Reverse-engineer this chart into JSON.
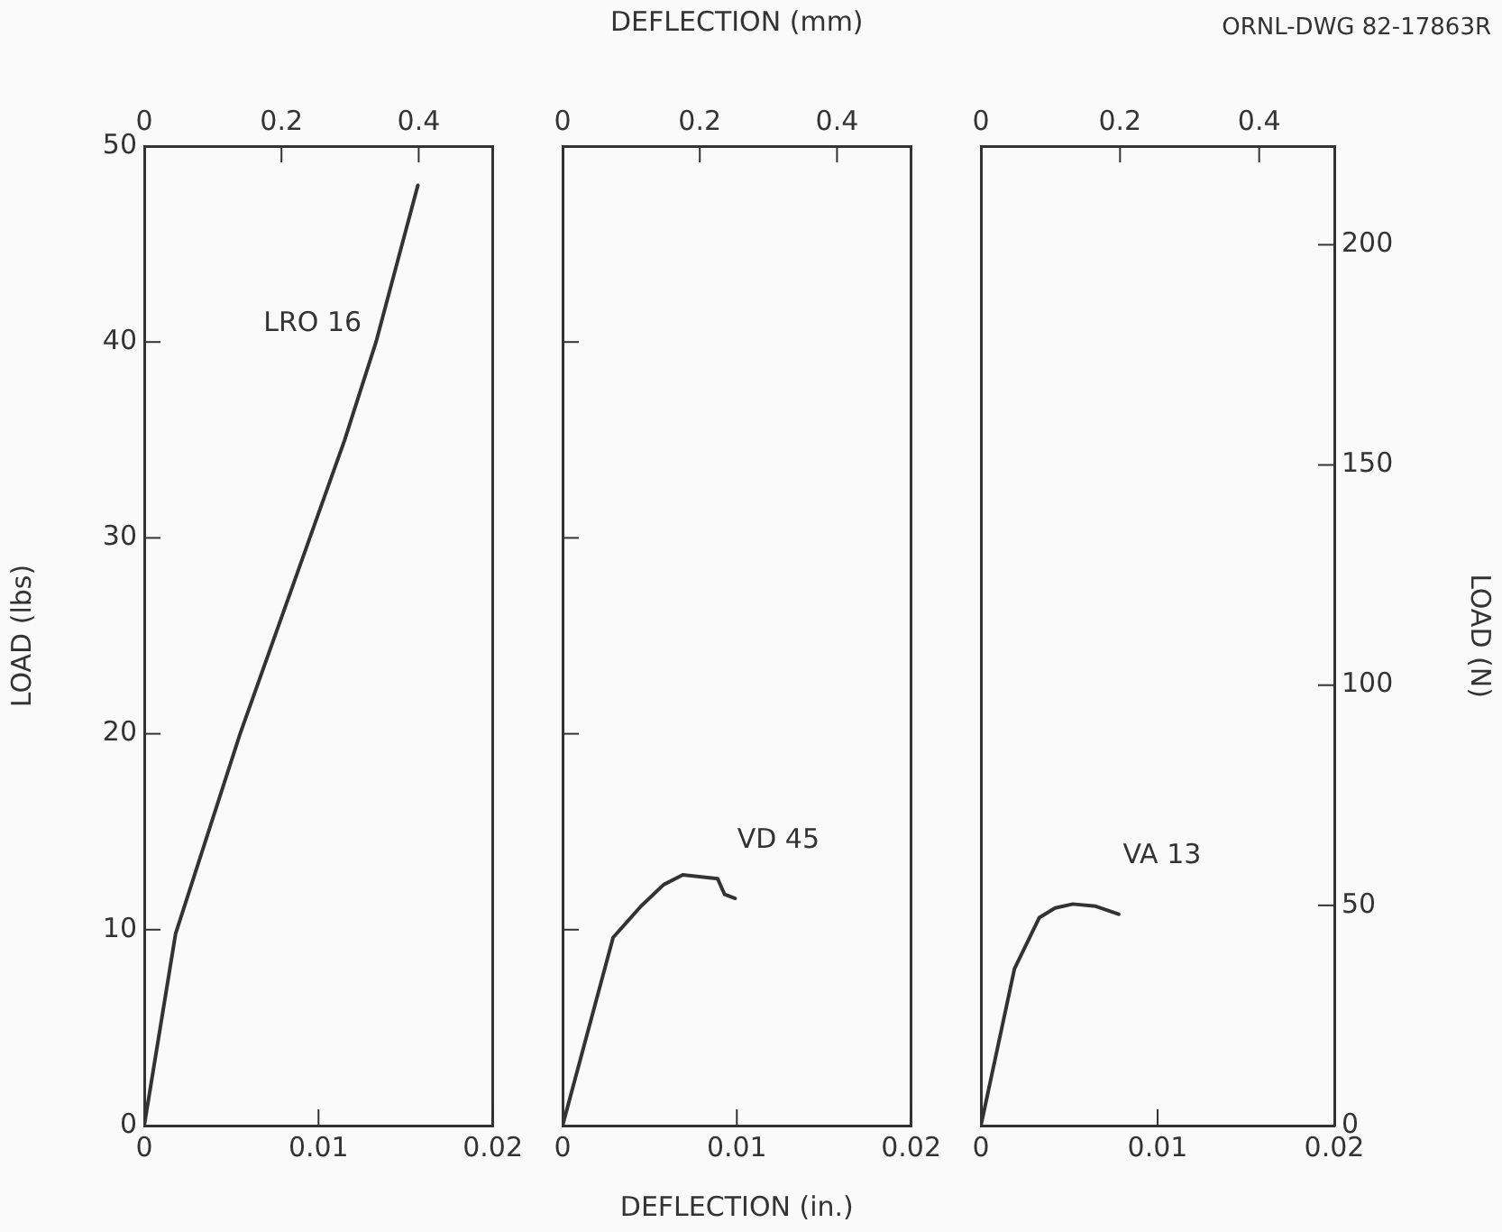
{
  "chart_data": [
    {
      "type": "line",
      "ylabel": "LOAD (lbs)",
      "xlim": [
        0,
        0.02
      ],
      "xticks": [
        0,
        0.01,
        0.02
      ],
      "x2lim": [
        0,
        0.508
      ],
      "x2ticks": [
        0,
        0.2,
        0.4
      ],
      "ylim": [
        0,
        50
      ],
      "yticks": [
        0,
        10,
        20,
        30,
        40,
        50
      ],
      "grid": false,
      "legend": false,
      "marker": "none",
      "line_style": "solid",
      "series": [
        {
          "name": "LRO 16",
          "color": "#333333",
          "x": [
            0,
            0.0018,
            0.0055,
            0.0095,
            0.0115,
            0.0133,
            0.0148,
            0.0157
          ],
          "values": [
            0,
            9.8,
            20,
            30,
            35,
            40,
            45,
            48
          ]
        }
      ]
    },
    {
      "type": "line",
      "xlabel": "DEFLECTION (in.)",
      "x2label": "DEFLECTION (mm)",
      "xlim": [
        0,
        0.02
      ],
      "xticks": [
        0,
        0.01,
        0.02
      ],
      "x2lim": [
        0,
        0.508
      ],
      "x2ticks": [
        0,
        0.2,
        0.4
      ],
      "ylim": [
        0,
        50
      ],
      "yticks": [
        0,
        10,
        20,
        30,
        40,
        50
      ],
      "tick_labels": "x",
      "grid": false,
      "legend": false,
      "marker": "none",
      "line_style": "solid",
      "series": [
        {
          "name": "VD 45",
          "color": "#333333",
          "x": [
            0,
            0.0029,
            0.0045,
            0.0058,
            0.0069,
            0.0089,
            0.0093,
            0.0099
          ],
          "values": [
            0,
            9.6,
            11.2,
            12.3,
            12.8,
            12.6,
            11.8,
            11.6
          ]
        }
      ]
    },
    {
      "type": "line",
      "y2label": "LOAD (N)",
      "xlim": [
        0,
        0.02
      ],
      "xticks": [
        0,
        0.01,
        0.02
      ],
      "x2lim": [
        0,
        0.508
      ],
      "x2ticks": [
        0,
        0.2,
        0.4
      ],
      "y2lim": [
        0,
        222.4
      ],
      "y2ticks": [
        0,
        50,
        100,
        150,
        200
      ],
      "grid": false,
      "legend": false,
      "marker": "none",
      "line_style": "solid",
      "series": [
        {
          "name": "VA 13",
          "color": "#333333",
          "axis": "y2",
          "x": [
            0,
            0.0019,
            0.0033,
            0.0042,
            0.0052,
            0.0065,
            0.0078
          ],
          "values": [
            0,
            35.6,
            47.2,
            49.4,
            50.3,
            49.8,
            48.0
          ]
        }
      ],
      "annotations": [
        "ORNL-DWG 82-17863R"
      ]
    }
  ]
}
